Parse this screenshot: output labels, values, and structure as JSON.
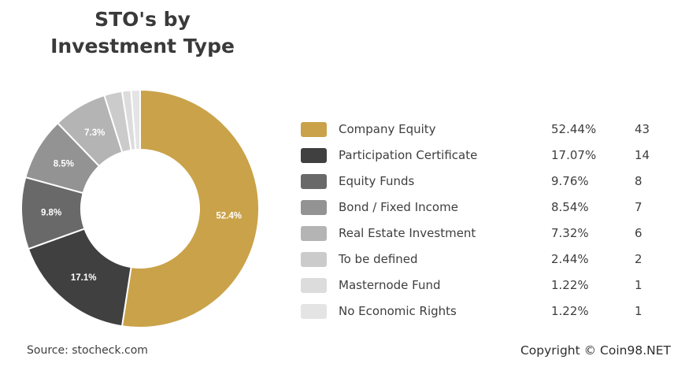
{
  "chart_data": {
    "type": "pie",
    "donut": true,
    "title_lines": [
      "STO's by",
      "Investment Type"
    ],
    "slices": [
      {
        "label": "Company Equity",
        "percent_label": "52.44%",
        "count": "43",
        "value": 52.44,
        "slice_label": "52.4%",
        "color": "#caa249"
      },
      {
        "label": "Participation Certificate",
        "percent_label": "17.07%",
        "count": "14",
        "value": 17.07,
        "slice_label": "17.1%",
        "color": "#404040"
      },
      {
        "label": "Equity Funds",
        "percent_label": "9.76%",
        "count": "8",
        "value": 9.76,
        "slice_label": "9.8%",
        "color": "#696969"
      },
      {
        "label": "Bond / Fixed Income",
        "percent_label": "8.54%",
        "count": "7",
        "value": 8.54,
        "slice_label": "8.5%",
        "color": "#939393"
      },
      {
        "label": "Real Estate Investment",
        "percent_label": "7.32%",
        "count": "6",
        "value": 7.32,
        "slice_label": "7.3%",
        "color": "#b4b4b4"
      },
      {
        "label": "To be defined",
        "percent_label": "2.44%",
        "count": "2",
        "value": 2.44,
        "slice_label": "",
        "color": "#cbcbcb"
      },
      {
        "label": "Masternode Fund",
        "percent_label": "1.22%",
        "count": "1",
        "value": 1.22,
        "slice_label": "",
        "color": "#dcdcdc"
      },
      {
        "label": "No Economic Rights",
        "percent_label": "1.22%",
        "count": "1",
        "value": 1.22,
        "slice_label": "",
        "color": "#e4e4e4"
      }
    ],
    "legend_position": "right"
  },
  "footer": {
    "source": "Source: stocheck.com",
    "copyright": "Copyright © Coin98.NET"
  }
}
